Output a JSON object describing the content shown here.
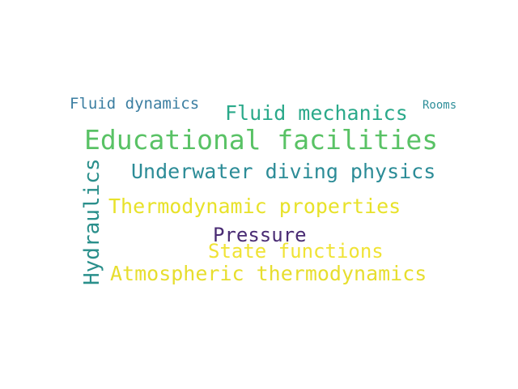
{
  "words": [
    {
      "text": "Fluid dynamics",
      "color": "#3b7ea1"
    },
    {
      "text": "Fluid mechanics",
      "color": "#2aa98a"
    },
    {
      "text": "Rooms",
      "color": "#2f8f9a"
    },
    {
      "text": "Educational facilities",
      "color": "#59c265"
    },
    {
      "text": "Hydraulics",
      "color": "#2a8f8b"
    },
    {
      "text": "Underwater diving physics",
      "color": "#2c8c97"
    },
    {
      "text": "Thermodynamic properties",
      "color": "#e8e22a"
    },
    {
      "text": "Pressure",
      "color": "#4a2c74"
    },
    {
      "text": "State functions",
      "color": "#f0e335"
    },
    {
      "text": "Atmospheric thermodynamics",
      "color": "#e7de2e"
    }
  ]
}
